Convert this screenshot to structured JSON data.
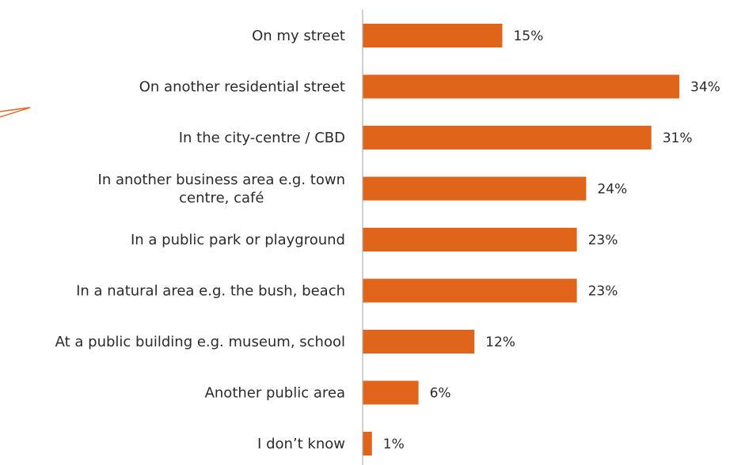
{
  "chart_data": {
    "type": "bar",
    "orientation": "horizontal",
    "categories": [
      [
        "On my street"
      ],
      [
        "On another residential street"
      ],
      [
        "In the city-centre / CBD"
      ],
      [
        "In another business area e.g. town",
        "centre, café"
      ],
      [
        "In a public park or playground"
      ],
      [
        "In a natural area e.g. the bush, beach"
      ],
      [
        "At a public building e.g. museum, school"
      ],
      [
        "Another public area"
      ],
      [
        "I don’t know"
      ]
    ],
    "values": [
      15,
      34,
      31,
      24,
      23,
      23,
      12,
      6,
      1
    ],
    "value_labels": [
      "15%",
      "34%",
      "31%",
      "24%",
      "23%",
      "23%",
      "12%",
      "6%",
      "1%"
    ],
    "xlim": [
      0,
      34
    ],
    "bar_color": "#e0651a",
    "axis_color": "#b0b0b0",
    "accent_stroke_color": "#e0651a",
    "grid": false,
    "legend": "none"
  }
}
